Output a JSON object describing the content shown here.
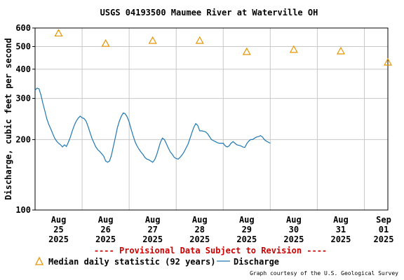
{
  "chart_data": {
    "type": "line",
    "title": "USGS 04193500 Maumee River at Waterville OH",
    "ylabel": "Discharge, cubic feet per second",
    "yscale": "log",
    "ylim": [
      100,
      600
    ],
    "xlim": [
      "2025-08-25T00:00",
      "2025-09-01T12:00"
    ],
    "y_ticks": [
      {
        "value": 100,
        "label": "100"
      },
      {
        "value": 200,
        "label": "200"
      },
      {
        "value": 300,
        "label": "300"
      },
      {
        "value": 400,
        "label": "400"
      },
      {
        "value": 500,
        "label": "500"
      },
      {
        "value": 600,
        "label": "600"
      }
    ],
    "x_ticks": [
      {
        "value": "2025-08-25T00:00",
        "label": [
          "Aug",
          "25",
          "2025"
        ]
      },
      {
        "value": "2025-08-26T00:00",
        "label": [
          "Aug",
          "26",
          "2025"
        ]
      },
      {
        "value": "2025-08-27T00:00",
        "label": [
          "Aug",
          "27",
          "2025"
        ]
      },
      {
        "value": "2025-08-28T00:00",
        "label": [
          "Aug",
          "28",
          "2025"
        ]
      },
      {
        "value": "2025-08-29T00:00",
        "label": [
          "Aug",
          "29",
          "2025"
        ]
      },
      {
        "value": "2025-08-30T00:00",
        "label": [
          "Aug",
          "30",
          "2025"
        ]
      },
      {
        "value": "2025-08-31T00:00",
        "label": [
          "Aug",
          "31",
          "2025"
        ]
      },
      {
        "value": "2025-09-01T00:00",
        "label": [
          "Sep",
          "01",
          "2025"
        ]
      }
    ],
    "grid": true,
    "series": [
      {
        "name": "Median daily statistic (92 years)",
        "kind": "marker-triangle",
        "color": "#e69500",
        "points": [
          {
            "x": "2025-08-25T12:00",
            "y": 570
          },
          {
            "x": "2025-08-26T12:00",
            "y": 515
          },
          {
            "x": "2025-08-27T12:00",
            "y": 530
          },
          {
            "x": "2025-08-28T12:00",
            "y": 530
          },
          {
            "x": "2025-08-29T12:00",
            "y": 475
          },
          {
            "x": "2025-08-30T12:00",
            "y": 485
          },
          {
            "x": "2025-08-31T12:00",
            "y": 478
          },
          {
            "x": "2025-09-01T12:00",
            "y": 428
          }
        ]
      },
      {
        "name": "Discharge",
        "kind": "line",
        "color": "#1f77b4",
        "points": [
          {
            "x": "2025-08-25T00:00",
            "y": 325
          },
          {
            "x": "2025-08-25T01:00",
            "y": 332
          },
          {
            "x": "2025-08-25T02:00",
            "y": 330
          },
          {
            "x": "2025-08-25T03:00",
            "y": 310
          },
          {
            "x": "2025-08-25T04:00",
            "y": 285
          },
          {
            "x": "2025-08-25T05:00",
            "y": 265
          },
          {
            "x": "2025-08-25T06:00",
            "y": 245
          },
          {
            "x": "2025-08-25T07:00",
            "y": 232
          },
          {
            "x": "2025-08-25T08:00",
            "y": 222
          },
          {
            "x": "2025-08-25T09:00",
            "y": 212
          },
          {
            "x": "2025-08-25T10:00",
            "y": 203
          },
          {
            "x": "2025-08-25T11:00",
            "y": 197
          },
          {
            "x": "2025-08-25T12:00",
            "y": 193
          },
          {
            "x": "2025-08-25T13:00",
            "y": 190
          },
          {
            "x": "2025-08-25T14:00",
            "y": 186
          },
          {
            "x": "2025-08-25T15:00",
            "y": 190
          },
          {
            "x": "2025-08-25T16:00",
            "y": 187
          },
          {
            "x": "2025-08-25T17:00",
            "y": 195
          },
          {
            "x": "2025-08-25T18:00",
            "y": 205
          },
          {
            "x": "2025-08-25T19:00",
            "y": 218
          },
          {
            "x": "2025-08-25T20:00",
            "y": 230
          },
          {
            "x": "2025-08-25T21:00",
            "y": 240
          },
          {
            "x": "2025-08-25T22:00",
            "y": 247
          },
          {
            "x": "2025-08-25T23:00",
            "y": 252
          },
          {
            "x": "2025-08-26T00:00",
            "y": 248
          },
          {
            "x": "2025-08-26T01:00",
            "y": 246
          },
          {
            "x": "2025-08-26T02:00",
            "y": 240
          },
          {
            "x": "2025-08-26T03:00",
            "y": 228
          },
          {
            "x": "2025-08-26T04:00",
            "y": 215
          },
          {
            "x": "2025-08-26T05:00",
            "y": 203
          },
          {
            "x": "2025-08-26T06:00",
            "y": 194
          },
          {
            "x": "2025-08-26T07:00",
            "y": 186
          },
          {
            "x": "2025-08-26T08:00",
            "y": 181
          },
          {
            "x": "2025-08-26T09:00",
            "y": 178
          },
          {
            "x": "2025-08-26T10:00",
            "y": 174
          },
          {
            "x": "2025-08-26T11:00",
            "y": 170
          },
          {
            "x": "2025-08-26T12:00",
            "y": 162
          },
          {
            "x": "2025-08-26T13:00",
            "y": 160
          },
          {
            "x": "2025-08-26T14:00",
            "y": 162
          },
          {
            "x": "2025-08-26T15:00",
            "y": 172
          },
          {
            "x": "2025-08-26T16:00",
            "y": 188
          },
          {
            "x": "2025-08-26T17:00",
            "y": 205
          },
          {
            "x": "2025-08-26T18:00",
            "y": 225
          },
          {
            "x": "2025-08-26T19:00",
            "y": 240
          },
          {
            "x": "2025-08-26T20:00",
            "y": 252
          },
          {
            "x": "2025-08-26T21:00",
            "y": 260
          },
          {
            "x": "2025-08-26T22:00",
            "y": 258
          },
          {
            "x": "2025-08-26T23:00",
            "y": 250
          },
          {
            "x": "2025-08-27T00:00",
            "y": 238
          },
          {
            "x": "2025-08-27T01:00",
            "y": 222
          },
          {
            "x": "2025-08-27T02:00",
            "y": 208
          },
          {
            "x": "2025-08-27T03:00",
            "y": 196
          },
          {
            "x": "2025-08-27T04:00",
            "y": 188
          },
          {
            "x": "2025-08-27T05:00",
            "y": 182
          },
          {
            "x": "2025-08-27T06:00",
            "y": 177
          },
          {
            "x": "2025-08-27T07:00",
            "y": 173
          },
          {
            "x": "2025-08-27T08:00",
            "y": 168
          },
          {
            "x": "2025-08-27T09:00",
            "y": 165
          },
          {
            "x": "2025-08-27T10:00",
            "y": 164
          },
          {
            "x": "2025-08-27T11:00",
            "y": 162
          },
          {
            "x": "2025-08-27T12:00",
            "y": 160
          },
          {
            "x": "2025-08-27T13:00",
            "y": 164
          },
          {
            "x": "2025-08-27T14:00",
            "y": 172
          },
          {
            "x": "2025-08-27T15:00",
            "y": 183
          },
          {
            "x": "2025-08-27T16:00",
            "y": 195
          },
          {
            "x": "2025-08-27T17:00",
            "y": 203
          },
          {
            "x": "2025-08-27T18:00",
            "y": 200
          },
          {
            "x": "2025-08-27T19:00",
            "y": 192
          },
          {
            "x": "2025-08-27T20:00",
            "y": 184
          },
          {
            "x": "2025-08-27T21:00",
            "y": 177
          },
          {
            "x": "2025-08-27T22:00",
            "y": 173
          },
          {
            "x": "2025-08-27T23:00",
            "y": 168
          },
          {
            "x": "2025-08-28T00:00",
            "y": 166
          },
          {
            "x": "2025-08-28T01:00",
            "y": 165
          },
          {
            "x": "2025-08-28T02:00",
            "y": 168
          },
          {
            "x": "2025-08-28T03:00",
            "y": 172
          },
          {
            "x": "2025-08-28T04:00",
            "y": 177
          },
          {
            "x": "2025-08-28T05:00",
            "y": 184
          },
          {
            "x": "2025-08-28T06:00",
            "y": 191
          },
          {
            "x": "2025-08-28T07:00",
            "y": 202
          },
          {
            "x": "2025-08-28T08:00",
            "y": 214
          },
          {
            "x": "2025-08-28T09:00",
            "y": 226
          },
          {
            "x": "2025-08-28T10:00",
            "y": 234
          },
          {
            "x": "2025-08-28T11:00",
            "y": 230
          },
          {
            "x": "2025-08-28T12:00",
            "y": 218
          },
          {
            "x": "2025-08-28T13:00",
            "y": 218
          },
          {
            "x": "2025-08-28T14:00",
            "y": 217
          },
          {
            "x": "2025-08-28T15:00",
            "y": 216
          },
          {
            "x": "2025-08-28T16:00",
            "y": 212
          },
          {
            "x": "2025-08-28T17:00",
            "y": 206
          },
          {
            "x": "2025-08-28T18:00",
            "y": 200
          },
          {
            "x": "2025-08-28T19:00",
            "y": 198
          },
          {
            "x": "2025-08-28T20:00",
            "y": 196
          },
          {
            "x": "2025-08-28T21:00",
            "y": 194
          },
          {
            "x": "2025-08-28T22:00",
            "y": 193
          },
          {
            "x": "2025-08-28T23:00",
            "y": 193
          },
          {
            "x": "2025-08-29T00:00",
            "y": 193
          },
          {
            "x": "2025-08-29T01:00",
            "y": 188
          },
          {
            "x": "2025-08-29T02:00",
            "y": 186
          },
          {
            "x": "2025-08-29T03:00",
            "y": 188
          },
          {
            "x": "2025-08-29T04:00",
            "y": 193
          },
          {
            "x": "2025-08-29T05:00",
            "y": 196
          },
          {
            "x": "2025-08-29T06:00",
            "y": 193
          },
          {
            "x": "2025-08-29T07:00",
            "y": 190
          },
          {
            "x": "2025-08-29T08:00",
            "y": 189
          },
          {
            "x": "2025-08-29T09:00",
            "y": 188
          },
          {
            "x": "2025-08-29T10:00",
            "y": 186
          },
          {
            "x": "2025-08-29T11:00",
            "y": 185
          },
          {
            "x": "2025-08-29T12:00",
            "y": 192
          },
          {
            "x": "2025-08-29T13:00",
            "y": 197
          },
          {
            "x": "2025-08-29T14:00",
            "y": 200
          },
          {
            "x": "2025-08-29T15:00",
            "y": 200
          },
          {
            "x": "2025-08-29T16:00",
            "y": 203
          },
          {
            "x": "2025-08-29T17:00",
            "y": 205
          },
          {
            "x": "2025-08-29T18:00",
            "y": 206
          },
          {
            "x": "2025-08-29T19:00",
            "y": 208
          },
          {
            "x": "2025-08-29T20:00",
            "y": 205
          },
          {
            "x": "2025-08-29T21:00",
            "y": 200
          },
          {
            "x": "2025-08-29T22:00",
            "y": 197
          },
          {
            "x": "2025-08-29T23:00",
            "y": 195
          },
          {
            "x": "2025-08-30T00:00",
            "y": 193
          }
        ]
      }
    ],
    "legend": [
      {
        "label": "Median daily statistic (92 years)",
        "marker": "triangle",
        "color": "#e69500"
      },
      {
        "label": "Discharge",
        "marker": "line",
        "color": "#1f77b4"
      }
    ]
  },
  "provisional_notice": "---- Provisional Data Subject to Revision ----",
  "credit": "Graph courtesy of the U.S. Geological Survey",
  "colors": {
    "title": "#000000",
    "grid": "#c8c8c8",
    "notice": "#cc0000"
  }
}
